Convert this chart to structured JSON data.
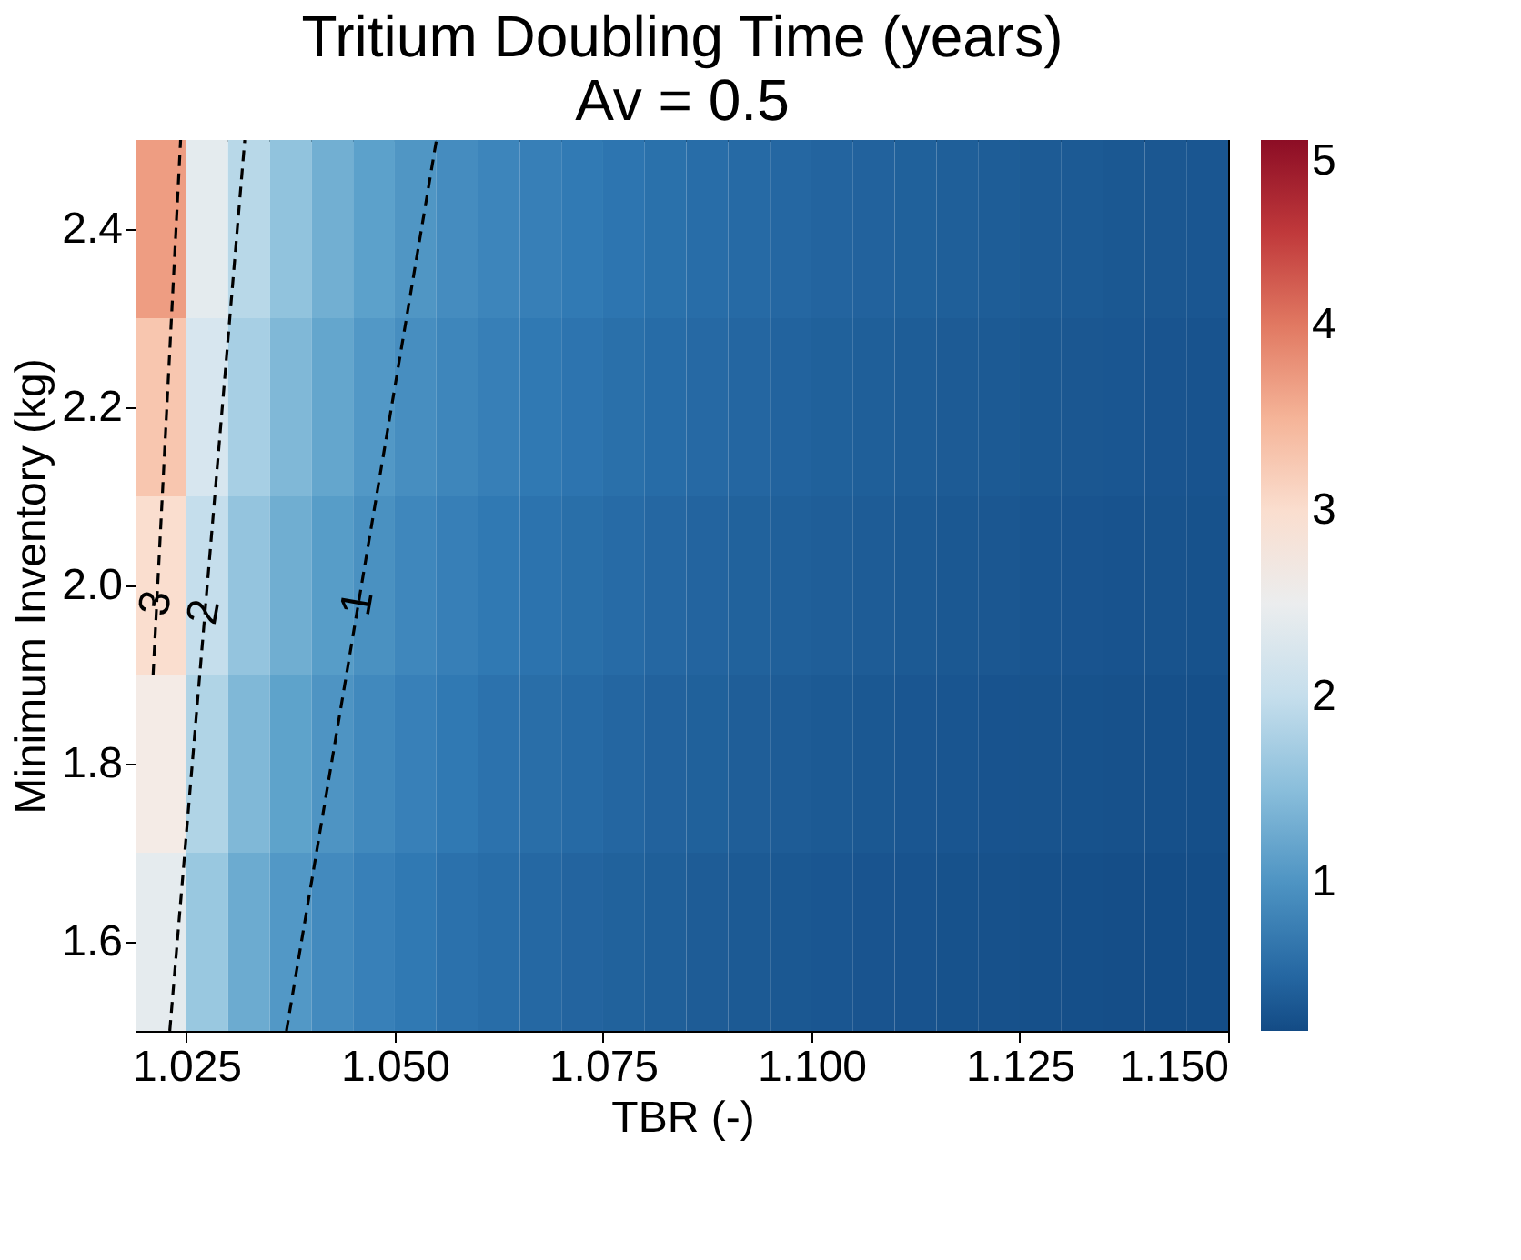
{
  "chart_data": {
    "type": "heatmap",
    "title": "Tritium Doubling Time (years)",
    "subtitle": "Av = 0.5",
    "xlabel": "TBR (-)",
    "ylabel": "Minimum Inventory (kg)",
    "x": [
      1.0225,
      1.0275,
      1.0325,
      1.0375,
      1.0425,
      1.0475,
      1.0525,
      1.0575,
      1.0625,
      1.0675,
      1.0725,
      1.0775,
      1.0825,
      1.0875,
      1.0925,
      1.0975,
      1.1025,
      1.1075,
      1.1125,
      1.1175,
      1.1225,
      1.1275,
      1.1325,
      1.1375,
      1.1425,
      1.1475
    ],
    "y": [
      2.4,
      2.2,
      2.0,
      1.8,
      1.6
    ],
    "cells": [
      [
        3.7,
        2.39,
        1.88,
        1.55,
        1.32,
        1.15,
        1.02,
        0.91,
        0.83,
        0.76,
        0.7,
        0.65,
        0.6,
        0.56,
        0.53,
        0.5,
        0.47,
        0.45,
        0.43,
        0.41,
        0.39,
        0.37,
        0.36,
        0.34,
        0.33,
        0.32
      ],
      [
        3.3,
        2.19,
        1.73,
        1.42,
        1.21,
        1.05,
        0.93,
        0.84,
        0.76,
        0.69,
        0.64,
        0.59,
        0.55,
        0.52,
        0.49,
        0.46,
        0.43,
        0.41,
        0.39,
        0.37,
        0.36,
        0.34,
        0.33,
        0.32,
        0.3,
        0.29
      ],
      [
        3.0,
        2.0,
        1.57,
        1.3,
        1.1,
        0.96,
        0.85,
        0.76,
        0.69,
        0.63,
        0.58,
        0.54,
        0.5,
        0.47,
        0.44,
        0.42,
        0.4,
        0.38,
        0.36,
        0.34,
        0.33,
        0.31,
        0.3,
        0.29,
        0.28,
        0.27
      ],
      [
        2.7,
        1.81,
        1.42,
        1.17,
        1.0,
        0.87,
        0.77,
        0.69,
        0.62,
        0.57,
        0.53,
        0.49,
        0.45,
        0.43,
        0.4,
        0.38,
        0.36,
        0.34,
        0.32,
        0.31,
        0.29,
        0.28,
        0.27,
        0.26,
        0.25,
        0.24
      ],
      [
        2.4,
        1.61,
        1.27,
        1.05,
        0.89,
        0.77,
        0.69,
        0.61,
        0.56,
        0.51,
        0.47,
        0.44,
        0.41,
        0.38,
        0.36,
        0.34,
        0.32,
        0.3,
        0.29,
        0.27,
        0.26,
        0.25,
        0.24,
        0.23,
        0.22,
        0.22
      ]
    ],
    "clim": [
      0.2,
      5
    ],
    "cticks": [
      1,
      2,
      3,
      4,
      5
    ],
    "xlim": [
      1.019,
      1.15
    ],
    "xticks": [
      1.025,
      {
        "value": 1.05,
        "label": "1.050"
      },
      1.075,
      {
        "value": 1.1,
        "label": "1.100"
      },
      1.125,
      {
        "value": 1.15,
        "label": "1.150"
      }
    ],
    "ylim": [
      1.5,
      2.5
    ],
    "yticks": [
      1.6,
      1.8,
      {
        "value": 2.0,
        "label": "2.0"
      },
      2.2,
      2.4
    ],
    "grid": false,
    "series": [
      {
        "type": "line",
        "color": "#000000",
        "line_style": "dashed",
        "x": [
          1.037,
          1.055
        ],
        "values": [
          1.5,
          2.5
        ]
      },
      {
        "type": "line",
        "color": "#000000",
        "line_style": "dashed",
        "x": [
          1.023,
          1.032
        ],
        "values": [
          1.5,
          2.5
        ]
      },
      {
        "type": "line",
        "color": "#000000",
        "line_style": "dashed",
        "x": [
          1.021,
          1.0243
        ],
        "values": [
          1.9,
          2.5
        ]
      }
    ],
    "annotations": [
      {
        "text": "1",
        "x": 1.0456,
        "y": 1.98
      },
      {
        "text": "2",
        "x": 1.0272,
        "y": 1.97
      },
      {
        "text": "3",
        "x": 1.0214,
        "y": 1.98
      }
    ]
  }
}
